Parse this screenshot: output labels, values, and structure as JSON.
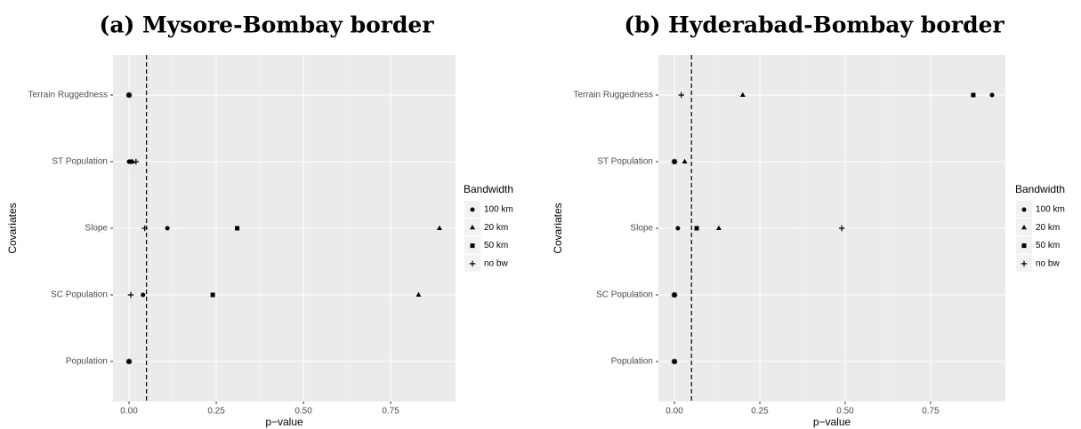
{
  "chart_data": [
    {
      "type": "scatter",
      "title": "(a) Mysore-Bombay border",
      "x_label": "p−value",
      "y_label": "Covariates",
      "categories": [
        "Population",
        "SC Population",
        "Slope",
        "ST Population",
        "Terrain Ruggedness"
      ],
      "xlim": [
        -0.046,
        0.936
      ],
      "xticks": [
        {
          "value": 0,
          "label": "0.00"
        },
        {
          "value": 0.25,
          "label": "0.25"
        },
        {
          "value": 0.5,
          "label": "0.50"
        },
        {
          "value": 0.75,
          "label": "0.75"
        }
      ],
      "vline": 0.05,
      "grid": true,
      "legend_title": "Bandwidth",
      "series": [
        {
          "name": "100 km",
          "marker": "circle",
          "color": "#000000",
          "values": [
            0.0,
            0.04,
            0.11,
            0.0,
            0.0
          ]
        },
        {
          "name": "20 km",
          "marker": "triangle",
          "color": "#000000",
          "values": [
            0.0,
            0.83,
            0.89,
            0.01,
            0.0
          ]
        },
        {
          "name": "50 km",
          "marker": "square",
          "color": "#000000",
          "values": [
            0.0,
            0.24,
            0.31,
            0.005,
            0.0
          ]
        },
        {
          "name": "no bw",
          "marker": "plus",
          "color": "#000000",
          "values": [
            0.0,
            0.005,
            0.045,
            0.02,
            0.0
          ]
        }
      ]
    },
    {
      "type": "scatter",
      "title": "(b) Hyderabad-Bombay border",
      "x_label": "p−value",
      "y_label": "Covariates",
      "categories": [
        "Population",
        "SC Population",
        "Slope",
        "ST Population",
        "Terrain Ruggedness"
      ],
      "xlim": [
        -0.047,
        0.969
      ],
      "xticks": [
        {
          "value": 0,
          "label": "0.00"
        },
        {
          "value": 0.25,
          "label": "0.25"
        },
        {
          "value": 0.5,
          "label": "0.50"
        },
        {
          "value": 0.75,
          "label": "0.75"
        }
      ],
      "vline": 0.05,
      "grid": true,
      "legend_title": "Bandwidth",
      "series": [
        {
          "name": "100 km",
          "marker": "circle",
          "color": "#000000",
          "values": [
            0.0,
            0.0,
            0.01,
            0.0,
            0.93
          ]
        },
        {
          "name": "20 km",
          "marker": "triangle",
          "color": "#000000",
          "values": [
            0.0,
            0.0,
            0.13,
            0.03,
            0.2
          ]
        },
        {
          "name": "50 km",
          "marker": "square",
          "color": "#000000",
          "values": [
            0.0,
            0.0,
            0.065,
            0.0,
            0.875
          ]
        },
        {
          "name": "no bw",
          "marker": "plus",
          "color": "#000000",
          "values": [
            0.0,
            0.0,
            0.49,
            0.0,
            0.02
          ]
        }
      ]
    }
  ]
}
